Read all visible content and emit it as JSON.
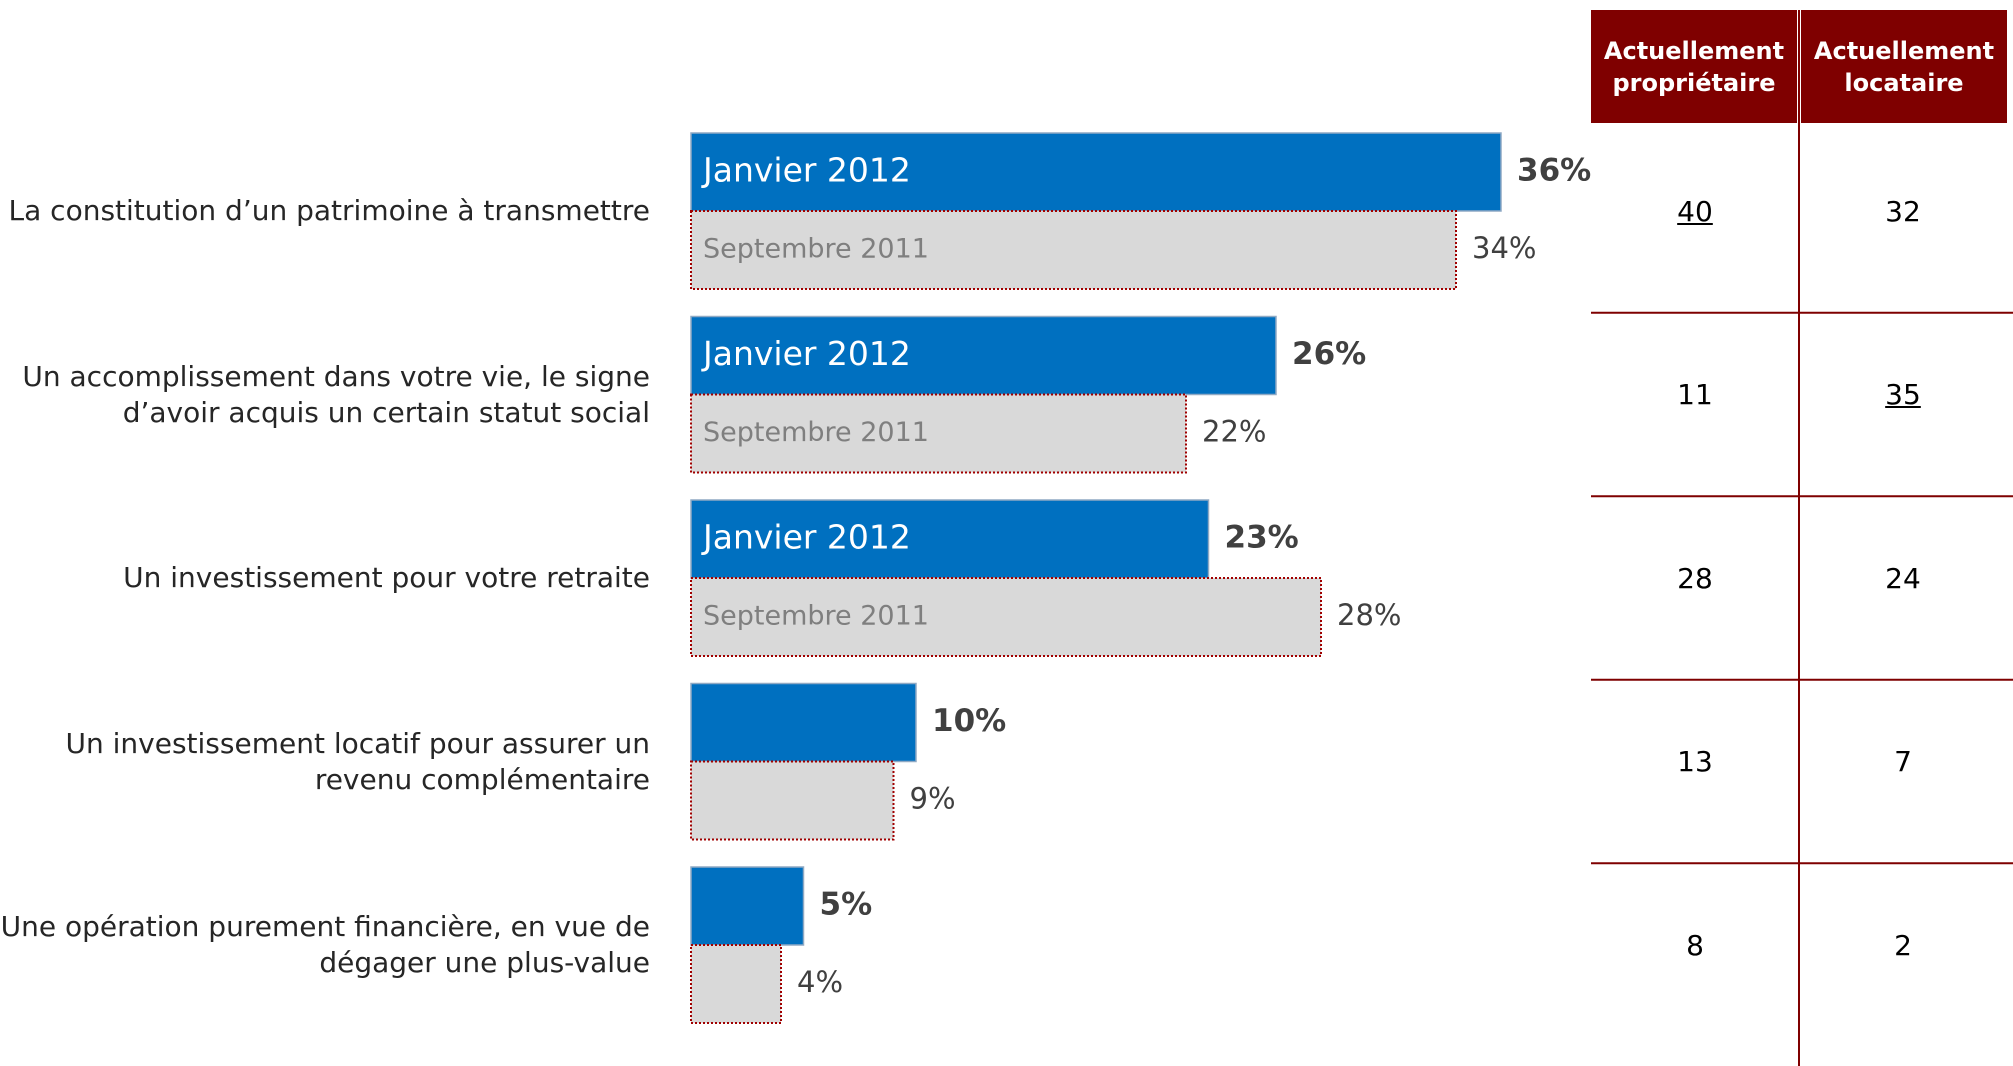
{
  "chart_data": {
    "type": "bar",
    "orientation": "horizontal",
    "categories": [
      "La constitution d’un patrimoine à transmettre",
      "Un accomplissement dans votre vie, le signe d’avoir acquis un certain statut social",
      "Un investissement pour votre retraite",
      "Un investissement locatif pour assurer un revenu complémentaire",
      "Une opération purement financière, en vue de dégager une plus-value"
    ],
    "series": [
      {
        "name": "Janvier 2012",
        "color": "#0070c0",
        "values": [
          36,
          26,
          23,
          10,
          5
        ],
        "value_labels": [
          "36%",
          "26%",
          "23%",
          "10%",
          "5%"
        ]
      },
      {
        "name": "Septembre 2011",
        "color": "#d9d9d9",
        "values": [
          34,
          22,
          28,
          9,
          4
        ],
        "value_labels": [
          "34%",
          "22%",
          "28%",
          "9%",
          "4%"
        ]
      }
    ]
  },
  "table": {
    "headers": [
      "Actuellement propriétaire",
      "Actuellement locataire"
    ],
    "rows": [
      [
        40,
        32
      ],
      [
        11,
        35
      ],
      [
        28,
        24
      ],
      [
        13,
        7
      ],
      [
        8,
        2
      ]
    ],
    "underlined": [
      [
        true,
        false
      ],
      [
        false,
        true
      ],
      [
        false,
        false
      ],
      [
        false,
        false
      ],
      [
        false,
        false
      ]
    ]
  }
}
